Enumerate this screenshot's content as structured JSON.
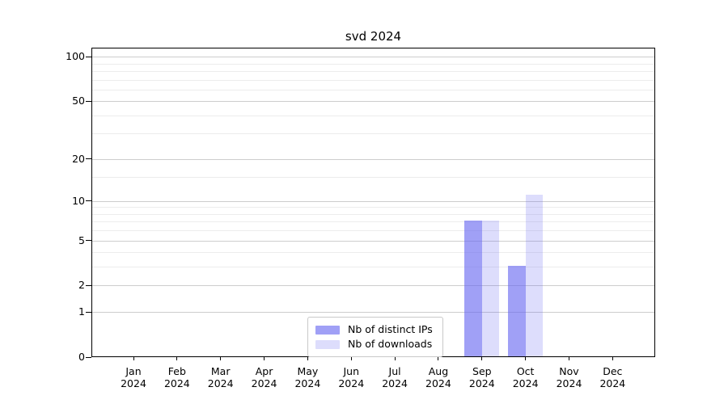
{
  "title": "svd 2024",
  "axes": {
    "y_tick_labels": [
      "0",
      "1",
      "2",
      "5",
      "10",
      "20",
      "50",
      "100"
    ],
    "x_months": [
      "Jan",
      "Feb",
      "Mar",
      "Apr",
      "May",
      "Jun",
      "Jul",
      "Aug",
      "Sep",
      "Oct",
      "Nov",
      "Dec"
    ],
    "x_year": "2024"
  },
  "legend": {
    "position": "lower center",
    "items": [
      {
        "label": "Nb of distinct IPs",
        "color": "rgba(102,102,240,0.62)",
        "hex_on_white": "#a5a5f5"
      },
      {
        "label": "Nb of downloads",
        "color": "rgba(102,102,240,0.22)",
        "hex_on_white": "#dcdcfa"
      }
    ]
  },
  "colors": {
    "background": "#ffffff",
    "spine": "#000000",
    "text": "#000000",
    "grid_major": "#cdcdcd",
    "grid_minor": "#ececec",
    "legend_border": "#c9c9c9"
  },
  "chart_data": {
    "type": "bar",
    "title": "svd 2024",
    "categories": [
      "Jan 2024",
      "Feb 2024",
      "Mar 2024",
      "Apr 2024",
      "May 2024",
      "Jun 2024",
      "Jul 2024",
      "Aug 2024",
      "Sep 2024",
      "Oct 2024",
      "Nov 2024",
      "Dec 2024"
    ],
    "series": [
      {
        "name": "Nb of distinct IPs",
        "color": "rgba(102,102,240,0.62)",
        "values": [
          0,
          0,
          0,
          0,
          0,
          0,
          0,
          0,
          7,
          3,
          0,
          0
        ]
      },
      {
        "name": "Nb of downloads",
        "color": "rgba(102,102,240,0.22)",
        "values": [
          0,
          0,
          0,
          0,
          0,
          0,
          0,
          0,
          7,
          11,
          0,
          0
        ]
      }
    ],
    "xlabel": "",
    "ylabel": "",
    "yscale": "log1p",
    "ylim": [
      0,
      115
    ],
    "y_major_ticks": [
      0,
      1,
      2,
      5,
      10,
      20,
      50,
      100
    ],
    "y_minor_ticks": [
      3,
      4,
      6,
      7,
      8,
      9,
      15,
      30,
      40,
      60,
      70,
      80,
      90
    ],
    "grid": "major+minor horizontal",
    "legend_position": "lower center",
    "bar_grouping": "two bars per category, IPs left of tick, downloads right of tick"
  }
}
